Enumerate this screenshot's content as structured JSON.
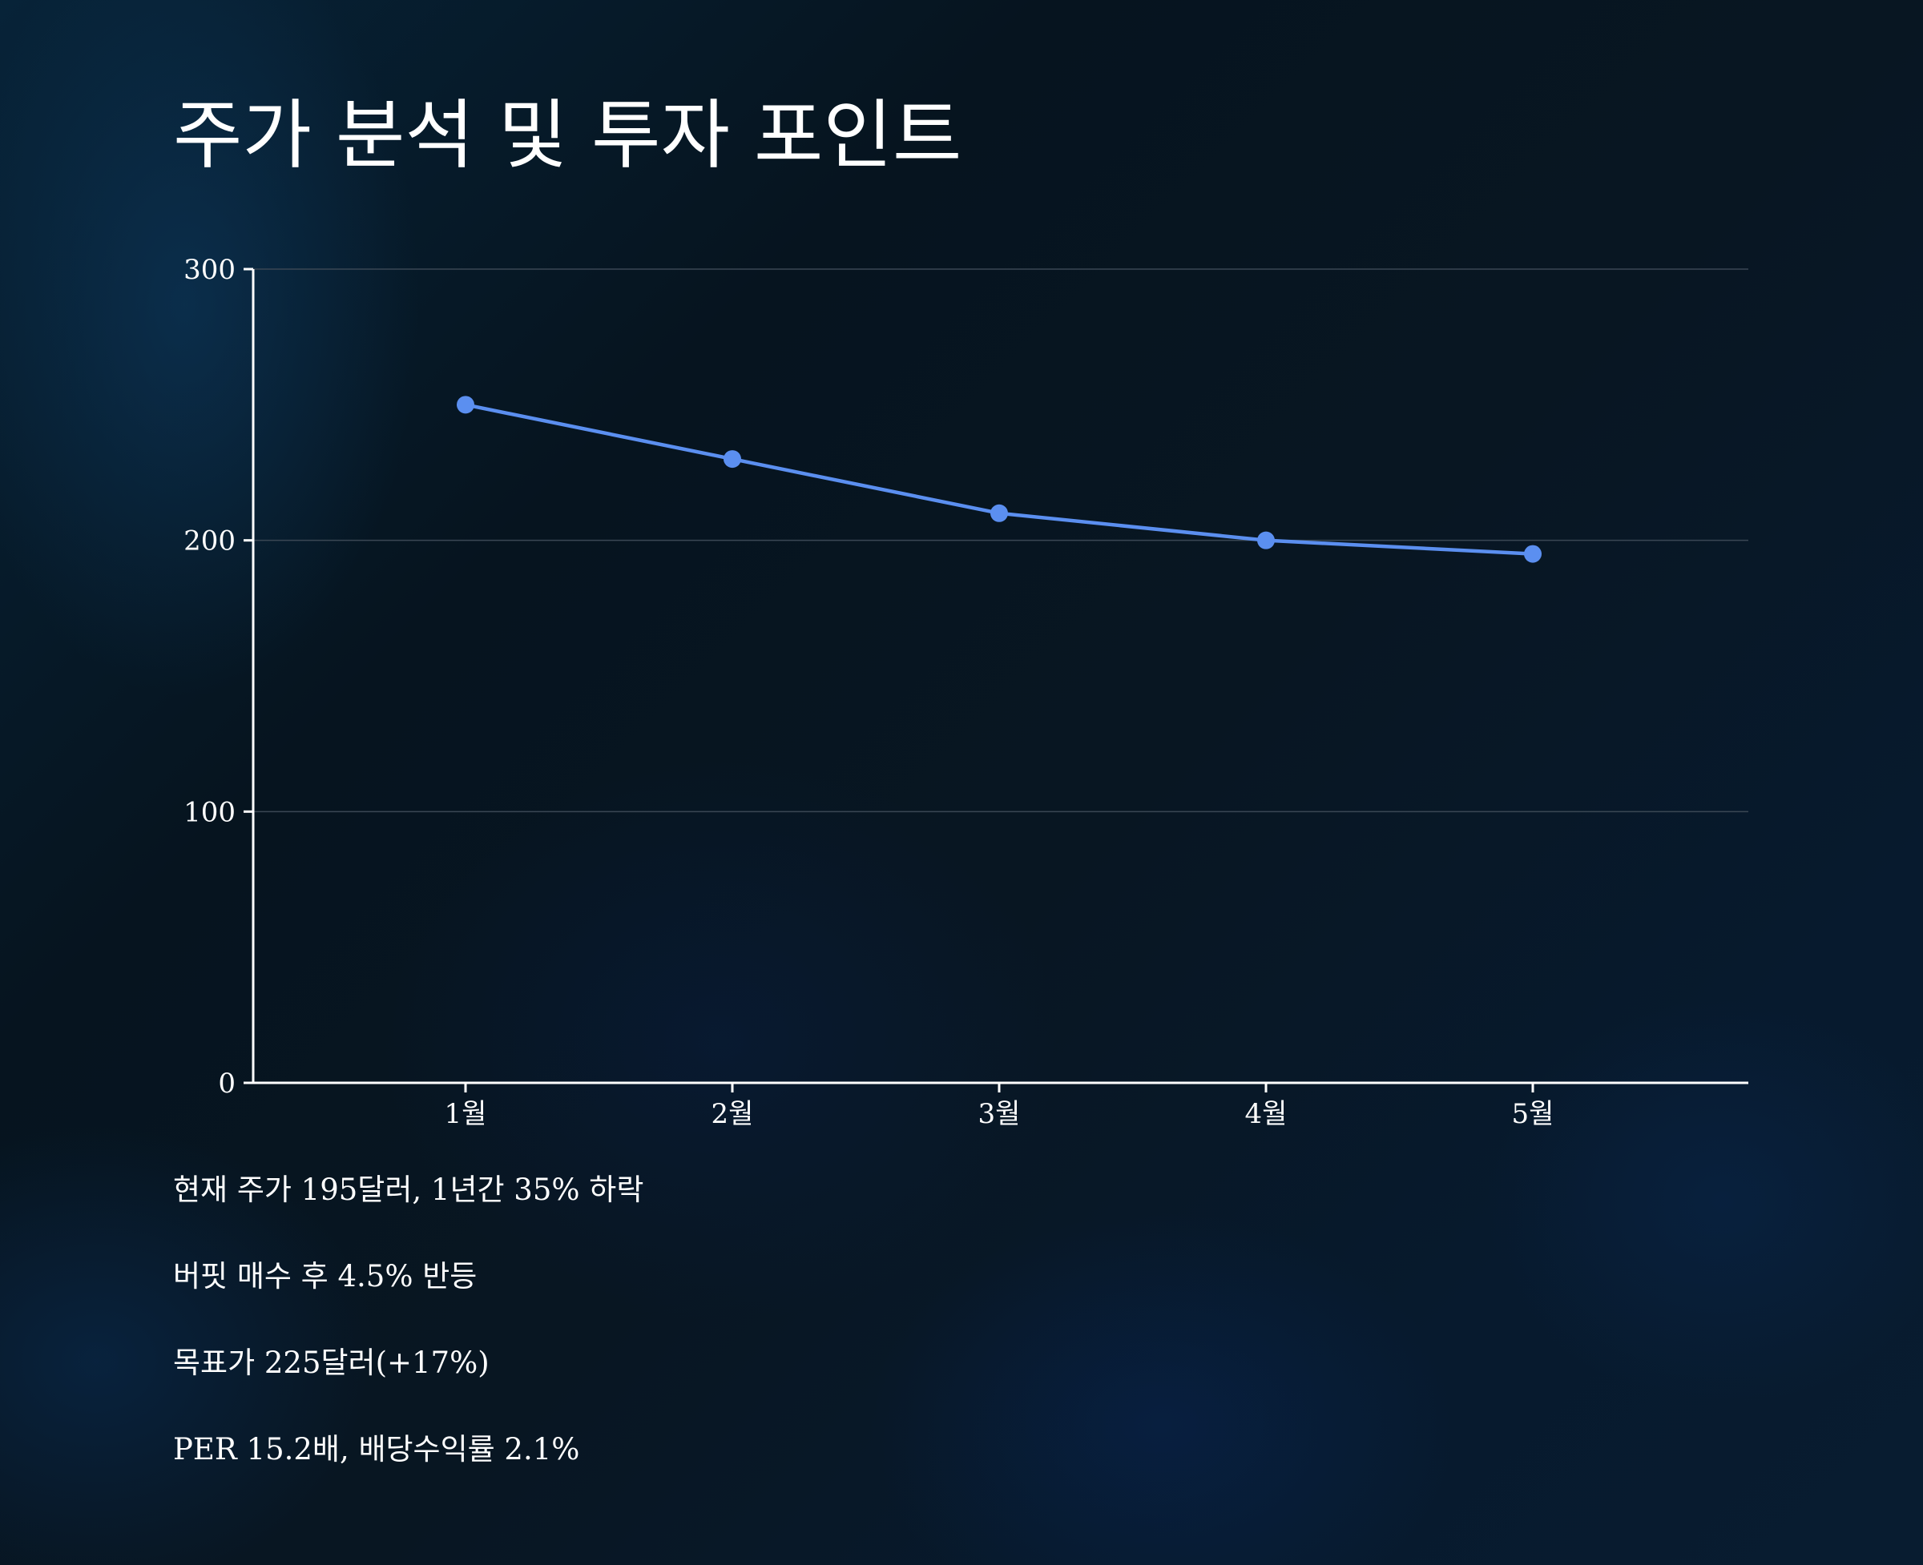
{
  "title": "주가 분석 및 투자 포인트",
  "chart_data": {
    "type": "line",
    "categories": [
      "1월",
      "2월",
      "3월",
      "4월",
      "5월"
    ],
    "series": [
      {
        "values": [
          250,
          230,
          210,
          200,
          195
        ]
      }
    ],
    "yticks": [
      "0",
      "100",
      "200",
      "300"
    ],
    "ylim": [
      0,
      300
    ],
    "xlabel": "",
    "ylabel": "",
    "grid": true,
    "legend": "none",
    "colors": {
      "line": "#5b8ff0",
      "point": "#5b8ff0",
      "axis": "#ffffff",
      "grid": "#3a4754"
    }
  },
  "notes": [
    "현재 주가 195달러, 1년간 35% 하락",
    "버핏 매수 후 4.5% 반등",
    "목표가 225달러(+17%)",
    "PER 15.2배, 배당수익률 2.1%"
  ]
}
